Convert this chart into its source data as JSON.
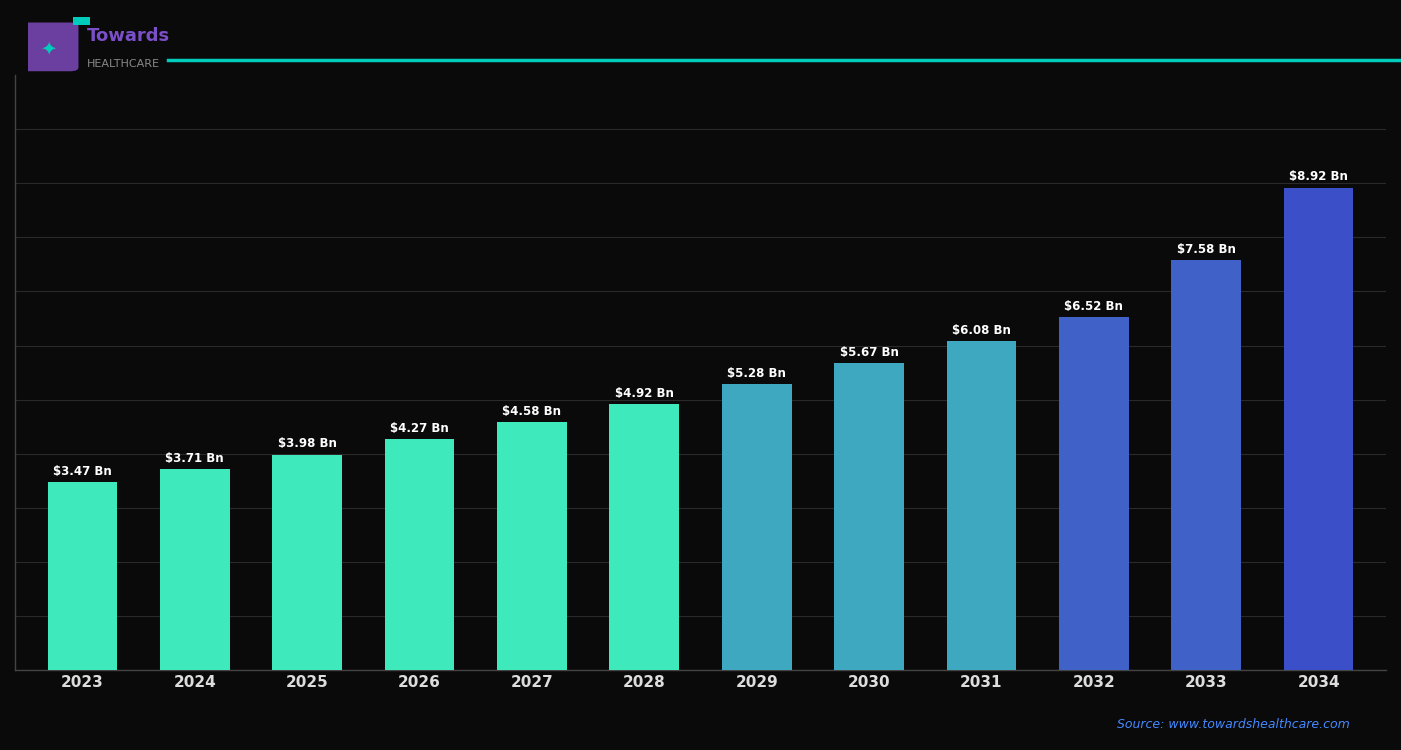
{
  "years": [
    "2023",
    "2024",
    "2025",
    "2026",
    "2027",
    "2028",
    "2029",
    "2030",
    "2031",
    "2032",
    "2033",
    "2034"
  ],
  "values": [
    3.47,
    3.71,
    3.98,
    4.27,
    4.58,
    4.92,
    5.28,
    5.67,
    6.08,
    6.52,
    7.58,
    8.92
  ],
  "bar_colors": [
    "#3EEABB",
    "#3EEABB",
    "#3EEABB",
    "#3EEABB",
    "#3EEABB",
    "#3EEABB",
    "#3DA8C0",
    "#3DA8C0",
    "#3DA8C0",
    "#4062C8",
    "#4062C8",
    "#3B4FC8"
  ],
  "value_labels": [
    "$3.47 Bn",
    "$3.71 Bn",
    "$3.98 Bn",
    "$4.27 Bn",
    "$4.58 Bn",
    "$4.92 Bn",
    "$5.28 Bn",
    "$5.67 Bn",
    "$6.08 Bn",
    "$6.52 Bn",
    "$7.58 Bn",
    "$8.92 Bn"
  ],
  "ylim": [
    0,
    11
  ],
  "background_color": "#0a0a0a",
  "bar_edge_color": "none",
  "grid_color": "#2a2a2a",
  "text_color": "#ffffff",
  "label_color": "#dddddd",
  "source_text": "Source: www.towardshealthcare.com",
  "source_color": "#4488ff",
  "title_line_color": "#00e5d0",
  "logo_text_line1": "Towards",
  "logo_text_line2": "HEALTHCARE",
  "accent_line_color": "#00CCBB"
}
